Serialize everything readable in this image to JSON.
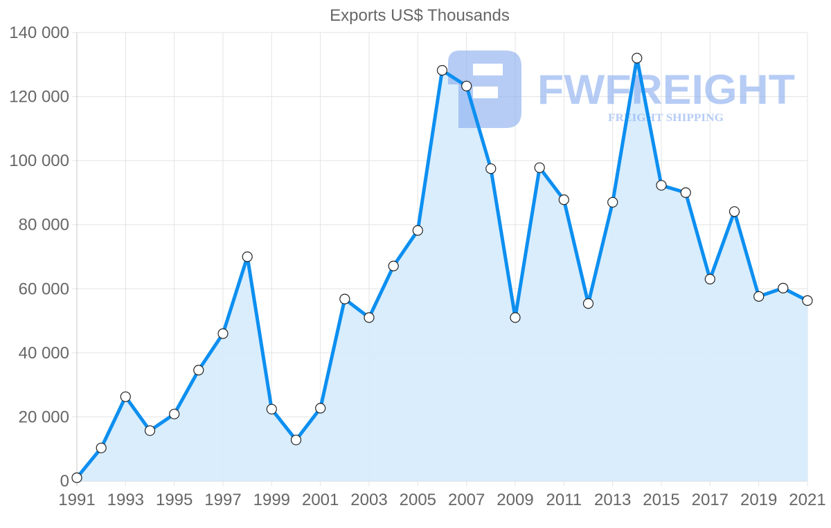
{
  "chart_data": {
    "type": "line",
    "title": "Exports US$ Thousands",
    "xlabel": "",
    "ylabel": "",
    "x": [
      1991,
      1992,
      1993,
      1994,
      1995,
      1996,
      1997,
      1998,
      1999,
      2000,
      2001,
      2002,
      2003,
      2004,
      2005,
      2006,
      2007,
      2008,
      2009,
      2010,
      2011,
      2012,
      2013,
      2014,
      2015,
      2016,
      2017,
      2018,
      2019,
      2020,
      2021
    ],
    "series": [
      {
        "name": "Exports US$ Thousands",
        "values": [
          1000,
          10300,
          26300,
          15700,
          20900,
          34600,
          46000,
          70000,
          22400,
          12800,
          22700,
          56800,
          51000,
          67100,
          78200,
          128200,
          123300,
          97500,
          51000,
          97800,
          87800,
          55400,
          87000,
          132000,
          92300,
          90000,
          63000,
          84100,
          57600,
          60200,
          56300
        ],
        "line_color": "#0d8ff0",
        "fill_color": "#d7ecfd",
        "fill": true,
        "markers": "hollow-circle"
      }
    ],
    "x_tick_labels": [
      "1991",
      "1993",
      "1995",
      "1997",
      "1999",
      "2001",
      "2003",
      "2005",
      "2007",
      "2009",
      "2011",
      "2013",
      "2015",
      "2017",
      "2019",
      "2021"
    ],
    "y_tick_labels": [
      "0",
      "20 000",
      "40 000",
      "60 000",
      "80 000",
      "100 000",
      "120 000",
      "140 000"
    ],
    "y_ticks": [
      0,
      20000,
      40000,
      60000,
      80000,
      100000,
      120000,
      140000
    ],
    "ylim": [
      0,
      140000
    ],
    "xlim": [
      1991,
      2021
    ],
    "grid": true,
    "legend": "none"
  },
  "watermark": {
    "brand": "FWFREIGHT",
    "tagline": "FREIGHT SHIPPING",
    "color": "#8aaef0"
  }
}
